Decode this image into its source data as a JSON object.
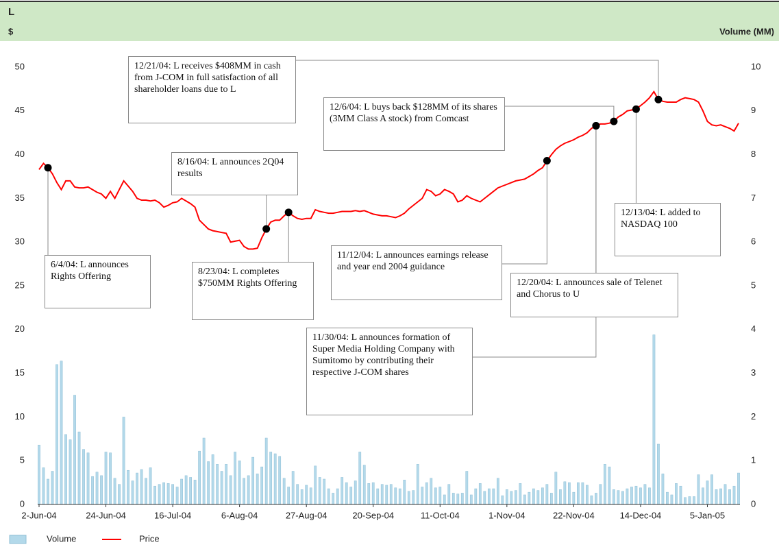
{
  "chart_data": {
    "type": "combo",
    "title": "L",
    "y_label": "$",
    "y2_label": "Volume (MM)",
    "categories": [
      "2-Jun-04",
      null,
      null,
      null,
      null,
      null,
      null,
      null,
      null,
      null,
      null,
      null,
      null,
      null,
      null,
      "24-Jun-04",
      null,
      null,
      null,
      null,
      null,
      null,
      null,
      null,
      null,
      null,
      null,
      null,
      null,
      null,
      "16-Jul-04",
      null,
      null,
      null,
      null,
      null,
      null,
      null,
      null,
      null,
      null,
      null,
      null,
      null,
      null,
      "6-Aug-04",
      null,
      null,
      null,
      null,
      null,
      null,
      null,
      null,
      null,
      null,
      null,
      null,
      null,
      null,
      "27-Aug-04",
      null,
      null,
      null,
      null,
      null,
      null,
      null,
      null,
      null,
      null,
      null,
      null,
      null,
      null,
      "20-Sep-04",
      null,
      null,
      null,
      null,
      null,
      null,
      null,
      null,
      null,
      null,
      null,
      null,
      null,
      null,
      "11-Oct-04",
      null,
      null,
      null,
      null,
      null,
      null,
      null,
      null,
      null,
      null,
      null,
      null,
      null,
      null,
      "1-Nov-04",
      null,
      null,
      null,
      null,
      null,
      null,
      null,
      null,
      null,
      null,
      null,
      null,
      null,
      null,
      "22-Nov-04",
      null,
      null,
      null,
      null,
      null,
      null,
      null,
      null,
      null,
      null,
      null,
      null,
      null,
      null,
      "14-Dec-04",
      null,
      null,
      null,
      null,
      null,
      null,
      null,
      null,
      null,
      null,
      null,
      null,
      null,
      null,
      "5-Jan-05",
      null,
      null,
      null,
      null,
      null,
      null,
      null
    ],
    "series": [
      {
        "name": "Volume",
        "type": "bar",
        "axis": "y2",
        "color": "#b3d9ea",
        "values": [
          1.36,
          0.84,
          0.58,
          0.76,
          3.2,
          3.28,
          1.6,
          1.48,
          2.5,
          1.66,
          1.26,
          1.18,
          0.64,
          0.74,
          0.66,
          1.2,
          1.18,
          0.6,
          0.46,
          2.0,
          0.78,
          0.54,
          0.72,
          0.8,
          0.6,
          0.84,
          0.42,
          0.46,
          0.5,
          0.48,
          0.46,
          0.4,
          0.58,
          0.66,
          0.62,
          0.56,
          1.22,
          1.52,
          0.98,
          1.14,
          0.92,
          0.76,
          0.92,
          0.66,
          1.2,
          1.0,
          0.6,
          0.66,
          1.08,
          0.7,
          0.86,
          1.52,
          1.2,
          1.16,
          1.1,
          0.6,
          0.4,
          0.76,
          0.46,
          0.34,
          0.44,
          0.38,
          0.88,
          0.62,
          0.58,
          0.36,
          0.26,
          0.36,
          0.62,
          0.5,
          0.4,
          0.54,
          1.2,
          0.9,
          0.48,
          0.5,
          0.36,
          0.46,
          0.44,
          0.46,
          0.38,
          0.36,
          0.56,
          0.3,
          0.32,
          0.92,
          0.4,
          0.5,
          0.6,
          0.38,
          0.4,
          0.22,
          0.46,
          0.26,
          0.24,
          0.26,
          0.76,
          0.22,
          0.36,
          0.48,
          0.3,
          0.36,
          0.36,
          0.6,
          0.2,
          0.34,
          0.3,
          0.32,
          0.48,
          0.22,
          0.28,
          0.36,
          0.32,
          0.38,
          0.46,
          0.26,
          0.74,
          0.34,
          0.52,
          0.5,
          0.28,
          0.5,
          0.5,
          0.44,
          0.2,
          0.26,
          0.46,
          0.92,
          0.86,
          0.34,
          0.32,
          0.3,
          0.36,
          0.4,
          0.42,
          0.38,
          0.46,
          0.38,
          3.88,
          1.38,
          0.7,
          0.28,
          0.22,
          0.48,
          0.42,
          0.16,
          0.18,
          0.18,
          0.68,
          0.38,
          0.54,
          0.68,
          0.34,
          0.36,
          0.46,
          0.34,
          0.42,
          0.72
        ]
      },
      {
        "name": "Price",
        "type": "line",
        "color": "#ff0000",
        "values": [
          38.3,
          39.0,
          38.5,
          37.8,
          36.8,
          36.0,
          37.0,
          37.0,
          36.3,
          36.2,
          36.2,
          36.3,
          36.0,
          35.7,
          35.5,
          35.0,
          35.8,
          35.0,
          36.0,
          37.0,
          36.4,
          35.8,
          35.0,
          34.8,
          34.8,
          34.7,
          34.8,
          34.5,
          34.0,
          34.2,
          34.5,
          34.6,
          35.0,
          34.7,
          34.4,
          34.0,
          32.5,
          32.0,
          31.5,
          31.3,
          31.2,
          31.1,
          31.0,
          30.0,
          30.1,
          30.2,
          29.5,
          29.2,
          29.2,
          29.3,
          30.5,
          31.5,
          32.3,
          32.5,
          32.5,
          33.0,
          33.4,
          33.0,
          32.7,
          32.6,
          32.7,
          32.7,
          33.7,
          33.5,
          33.4,
          33.3,
          33.3,
          33.4,
          33.5,
          33.5,
          33.5,
          33.6,
          33.5,
          33.6,
          33.4,
          33.2,
          33.1,
          33.0,
          33.0,
          32.9,
          32.8,
          33.0,
          33.3,
          33.8,
          34.2,
          34.6,
          35.0,
          36.0,
          35.8,
          35.3,
          35.5,
          36.0,
          35.8,
          35.5,
          34.6,
          34.8,
          35.3,
          35.0,
          34.8,
          34.6,
          35.0,
          35.4,
          35.8,
          36.2,
          36.4,
          36.6,
          36.8,
          37.0,
          37.1,
          37.2,
          37.5,
          37.8,
          38.2,
          38.5,
          39.3,
          40.0,
          40.6,
          41.0,
          41.3,
          41.5,
          41.7,
          42.0,
          42.2,
          42.5,
          43.0,
          43.3,
          43.5,
          43.5,
          43.6,
          43.8,
          44.3,
          44.6,
          45.0,
          45.1,
          45.2,
          45.6,
          46.0,
          46.5,
          47.2,
          46.3,
          46.1,
          46.0,
          46.0,
          46.0,
          46.3,
          46.5,
          46.4,
          46.3,
          46.0,
          45.0,
          43.8,
          43.4,
          43.3,
          43.4,
          43.2,
          43.0,
          42.7,
          43.6
        ]
      }
    ],
    "ylim": [
      0,
      50
    ],
    "yticks": [
      0,
      5,
      10,
      15,
      20,
      25,
      30,
      35,
      40,
      45,
      50
    ],
    "y2lim": [
      0,
      10
    ],
    "y2ticks": [
      0,
      1,
      2,
      3,
      4,
      5,
      6,
      7,
      8,
      9,
      10
    ],
    "grid": false,
    "annotations": [
      {
        "text": "6/4/04: L announces Rights Offering"
      },
      {
        "text": "8/16/04: L announces 2Q04 results"
      },
      {
        "text": "8/23/04: L completes $750MM Rights Offering"
      },
      {
        "text": "11/12/04: L announces earnings release and year end 2004 guidance"
      },
      {
        "text": "11/30/04: L announces formation of Super Media Holding Company with Sumitomo by contributing their respective J-COM shares"
      },
      {
        "text": "12/6/04: L buys back $128MM of its shares (3MM Class A stock) from Comcast"
      },
      {
        "text": "12/13/04: L added to NASDAQ 100"
      },
      {
        "text": "12/20/04: L announces sale of Telenet and Chorus to U"
      },
      {
        "text": "12/21/04: L receives $408MM in cash from J-COM in full satisfaction of all shareholder loans due to L"
      }
    ]
  }
}
